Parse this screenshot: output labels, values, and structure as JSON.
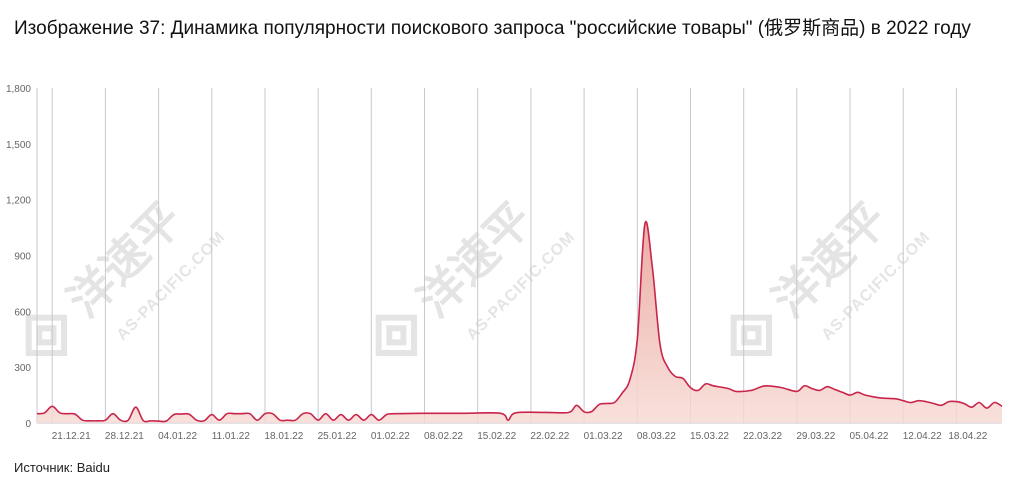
{
  "title": "Изображение 37: Динамика популярности поискового запроса \"российские товары\" (俄罗斯商品) в 2022 году",
  "source": "Источник: Baidu",
  "watermark": {
    "cn": "洋速平",
    "en": "AS-PACIFIC.COM"
  },
  "colors": {
    "line": "#c8254a",
    "fill": "#f7d9d3",
    "grid": "#c5c8d3",
    "axis_text": "#666666"
  },
  "chart_data": {
    "type": "area",
    "title": "Изображение 37: Динамика популярности поискового запроса \"российские товары\" (俄罗斯商品) в 2022 году",
    "xlabel": "",
    "ylabel": "",
    "ylim": [
      0,
      1800
    ],
    "yticks": [
      0,
      300,
      600,
      900,
      1200,
      1500,
      1800
    ],
    "ytick_labels": [
      "0",
      "300",
      "600",
      "900",
      "1,200",
      "1,500",
      "1,800"
    ],
    "xtick_labels": [
      "21.12.21",
      "28.12.21",
      "04.01.22",
      "11.01.22",
      "18.01.22",
      "25.01.22",
      "01.02.22",
      "08.02.22",
      "15.02.22",
      "22.02.22",
      "01.03.22",
      "08.03.22",
      "15.03.22",
      "22.03.22",
      "29.03.22",
      "05.04.22",
      "12.04.22",
      "18.04.22"
    ],
    "grid": "vertical",
    "series": [
      {
        "name": "",
        "values": [
          {
            "x": "2021-12-16",
            "y": 50
          },
          {
            "x": "2021-12-17",
            "y": 55
          },
          {
            "x": "2021-12-18",
            "y": 90
          },
          {
            "x": "2021-12-19",
            "y": 55
          },
          {
            "x": "2021-12-20",
            "y": 50
          },
          {
            "x": "2021-12-21",
            "y": 48
          },
          {
            "x": "2021-12-22",
            "y": 15
          },
          {
            "x": "2021-12-23",
            "y": 12
          },
          {
            "x": "2021-12-24",
            "y": 12
          },
          {
            "x": "2021-12-25",
            "y": 15
          },
          {
            "x": "2021-12-26",
            "y": 50
          },
          {
            "x": "2021-12-27",
            "y": 15
          },
          {
            "x": "2021-12-28",
            "y": 15
          },
          {
            "x": "2021-12-29",
            "y": 85
          },
          {
            "x": "2021-12-30",
            "y": 12
          },
          {
            "x": "2021-12-31",
            "y": 12
          },
          {
            "x": "2022-01-01",
            "y": 10
          },
          {
            "x": "2022-01-02",
            "y": 10
          },
          {
            "x": "2022-01-03",
            "y": 45
          },
          {
            "x": "2022-01-04",
            "y": 48
          },
          {
            "x": "2022-01-05",
            "y": 48
          },
          {
            "x": "2022-01-06",
            "y": 15
          },
          {
            "x": "2022-01-07",
            "y": 12
          },
          {
            "x": "2022-01-08",
            "y": 45
          },
          {
            "x": "2022-01-09",
            "y": 15
          },
          {
            "x": "2022-01-10",
            "y": 50
          },
          {
            "x": "2022-01-11",
            "y": 50
          },
          {
            "x": "2022-01-12",
            "y": 50
          },
          {
            "x": "2022-01-13",
            "y": 50
          },
          {
            "x": "2022-01-14",
            "y": 15
          },
          {
            "x": "2022-01-15",
            "y": 50
          },
          {
            "x": "2022-01-16",
            "y": 50
          },
          {
            "x": "2022-01-17",
            "y": 15
          },
          {
            "x": "2022-01-18",
            "y": 15
          },
          {
            "x": "2022-01-19",
            "y": 15
          },
          {
            "x": "2022-01-20",
            "y": 50
          },
          {
            "x": "2022-01-21",
            "y": 50
          },
          {
            "x": "2022-01-22",
            "y": 15
          },
          {
            "x": "2022-01-23",
            "y": 50
          },
          {
            "x": "2022-01-24",
            "y": 15
          },
          {
            "x": "2022-01-25",
            "y": 45
          },
          {
            "x": "2022-01-26",
            "y": 15
          },
          {
            "x": "2022-01-27",
            "y": 45
          },
          {
            "x": "2022-01-28",
            "y": 15
          },
          {
            "x": "2022-01-29",
            "y": 45
          },
          {
            "x": "2022-01-30",
            "y": 15
          },
          {
            "x": "2022-01-31",
            "y": 45
          },
          {
            "x": "2022-02-01",
            "y": 50
          },
          {
            "x": "2022-02-05",
            "y": 52
          },
          {
            "x": "2022-02-10",
            "y": 52
          },
          {
            "x": "2022-02-15",
            "y": 52
          },
          {
            "x": "2022-02-16",
            "y": 15
          },
          {
            "x": "2022-02-17",
            "y": 55
          },
          {
            "x": "2022-02-21",
            "y": 57
          },
          {
            "x": "2022-02-24",
            "y": 57
          },
          {
            "x": "2022-02-25",
            "y": 95
          },
          {
            "x": "2022-02-26",
            "y": 60
          },
          {
            "x": "2022-02-27",
            "y": 62
          },
          {
            "x": "2022-02-28",
            "y": 100
          },
          {
            "x": "2022-03-01",
            "y": 105
          },
          {
            "x": "2022-03-02",
            "y": 110
          },
          {
            "x": "2022-03-03",
            "y": 160
          },
          {
            "x": "2022-03-04",
            "y": 230
          },
          {
            "x": "2022-03-05",
            "y": 450
          },
          {
            "x": "2022-03-06",
            "y": 1070
          },
          {
            "x": "2022-03-07",
            "y": 830
          },
          {
            "x": "2022-03-08",
            "y": 420
          },
          {
            "x": "2022-03-09",
            "y": 300
          },
          {
            "x": "2022-03-10",
            "y": 250
          },
          {
            "x": "2022-03-11",
            "y": 240
          },
          {
            "x": "2022-03-12",
            "y": 190
          },
          {
            "x": "2022-03-13",
            "y": 175
          },
          {
            "x": "2022-03-14",
            "y": 210
          },
          {
            "x": "2022-03-15",
            "y": 200
          },
          {
            "x": "2022-03-17",
            "y": 185
          },
          {
            "x": "2022-03-18",
            "y": 170
          },
          {
            "x": "2022-03-20",
            "y": 175
          },
          {
            "x": "2022-03-21",
            "y": 190
          },
          {
            "x": "2022-03-22",
            "y": 200
          },
          {
            "x": "2022-03-24",
            "y": 190
          },
          {
            "x": "2022-03-26",
            "y": 170
          },
          {
            "x": "2022-03-27",
            "y": 200
          },
          {
            "x": "2022-03-28",
            "y": 185
          },
          {
            "x": "2022-03-29",
            "y": 175
          },
          {
            "x": "2022-03-30",
            "y": 195
          },
          {
            "x": "2022-03-31",
            "y": 180
          },
          {
            "x": "2022-04-01",
            "y": 165
          },
          {
            "x": "2022-04-02",
            "y": 150
          },
          {
            "x": "2022-04-03",
            "y": 165
          },
          {
            "x": "2022-04-04",
            "y": 150
          },
          {
            "x": "2022-04-06",
            "y": 135
          },
          {
            "x": "2022-04-08",
            "y": 130
          },
          {
            "x": "2022-04-09",
            "y": 120
          },
          {
            "x": "2022-04-10",
            "y": 110
          },
          {
            "x": "2022-04-11",
            "y": 120
          },
          {
            "x": "2022-04-12",
            "y": 115
          },
          {
            "x": "2022-04-13",
            "y": 105
          },
          {
            "x": "2022-04-14",
            "y": 95
          },
          {
            "x": "2022-04-15",
            "y": 115
          },
          {
            "x": "2022-04-16",
            "y": 115
          },
          {
            "x": "2022-04-17",
            "y": 105
          },
          {
            "x": "2022-04-18",
            "y": 85
          },
          {
            "x": "2022-04-19",
            "y": 110
          },
          {
            "x": "2022-04-20",
            "y": 80
          },
          {
            "x": "2022-04-21",
            "y": 110
          },
          {
            "x": "2022-04-22",
            "y": 90
          }
        ]
      }
    ]
  }
}
